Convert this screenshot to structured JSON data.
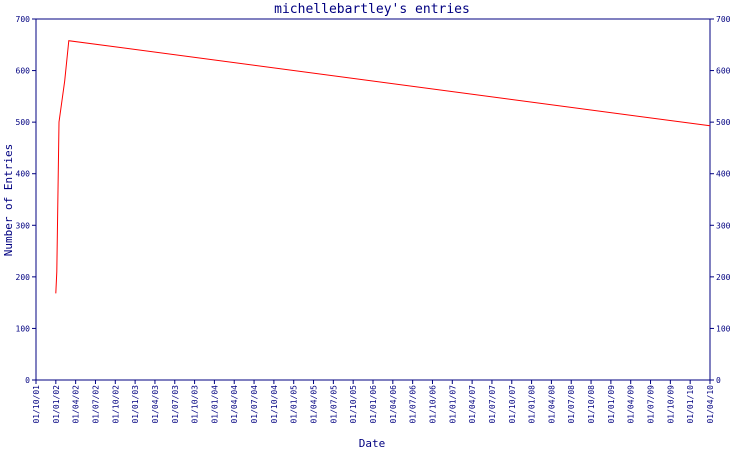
{
  "chart_data": {
    "type": "line",
    "title": "michellebartley's entries",
    "xlabel": "Date",
    "ylabel": "Number of Entries",
    "ylim": [
      0,
      700
    ],
    "yticks": [
      0,
      100,
      200,
      300,
      400,
      500,
      600,
      700
    ],
    "x_tick_labels": [
      "01/10/01",
      "01/01/02",
      "01/04/02",
      "01/07/02",
      "01/10/02",
      "01/01/03",
      "01/04/03",
      "01/07/03",
      "01/10/03",
      "01/01/04",
      "01/04/04",
      "01/07/04",
      "01/10/04",
      "01/01/05",
      "01/04/05",
      "01/07/05",
      "01/10/05",
      "01/01/06",
      "01/04/06",
      "01/07/06",
      "01/10/06",
      "01/01/07",
      "01/04/07",
      "01/07/07",
      "01/10/07",
      "01/01/08",
      "01/04/08",
      "01/07/08",
      "01/10/08",
      "01/01/09",
      "01/04/09",
      "01/07/09",
      "01/10/09",
      "01/01/10",
      "01/04/10"
    ],
    "x_range": [
      "2001-10-01",
      "2010-04-01"
    ],
    "grid": false,
    "right_axis": true,
    "colors": {
      "line": "#ff0000",
      "axis": "#000080",
      "text": "#000080"
    },
    "series": [
      {
        "x": [
          "2001-12-31",
          "2002-01-05",
          "2002-01-15",
          "2002-02-10",
          "2002-03-01",
          "2010-04-01"
        ],
        "values": [
          168,
          210,
          500,
          580,
          658,
          493
        ]
      }
    ]
  }
}
